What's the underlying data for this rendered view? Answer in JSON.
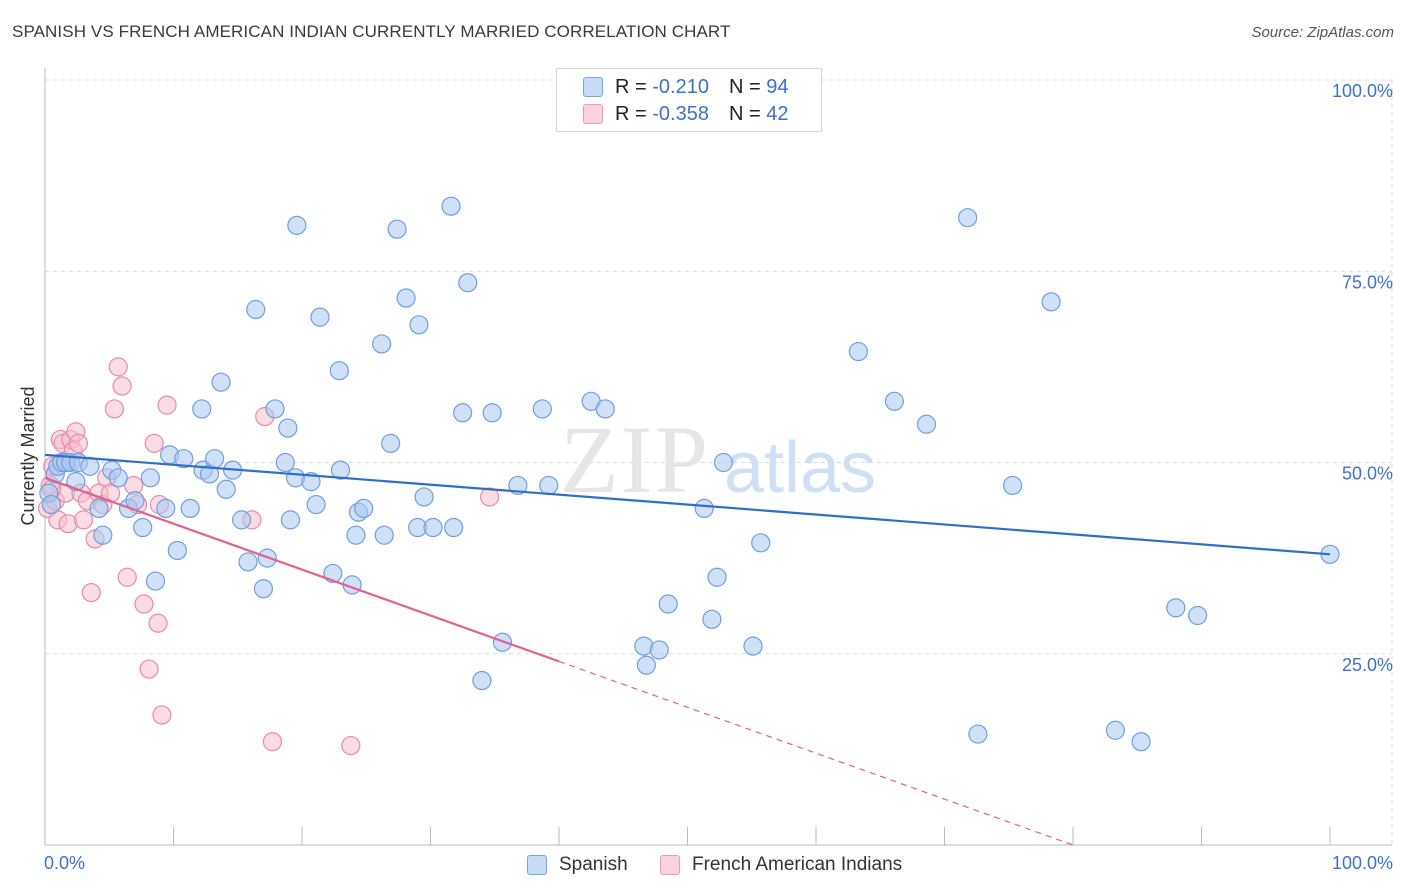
{
  "title": "SPANISH VS FRENCH AMERICAN INDIAN CURRENTLY MARRIED CORRELATION CHART",
  "source": "Source: ZipAtlas.com",
  "watermark": {
    "zip": "ZIP",
    "atlas": "atlas"
  },
  "legend": {
    "r_label": "R =",
    "n_label": "N =",
    "rows": [
      {
        "r": "-0.210",
        "n": "94"
      },
      {
        "r": "-0.358",
        "n": "42"
      }
    ]
  },
  "colors": {
    "spanish_fill": "#a9c8f0",
    "spanish_stroke": "#6f9fdc",
    "spanish_line": "#2e6fcb",
    "french_fill": "#f5bfd0",
    "french_stroke": "#e88aa8",
    "french_line": "#e0628f",
    "axis_text": "#3b73c9",
    "grid": "#d9d9d9"
  },
  "chart_data": {
    "type": "scatter",
    "title": "SPANISH VS FRENCH AMERICAN INDIAN CURRENTLY MARRIED CORRELATION CHART",
    "xlabel": "",
    "ylabel": "Currently Married",
    "xlim": [
      0,
      100
    ],
    "ylim": [
      0,
      100
    ],
    "x_tick_labels": [
      "0.0%",
      "100.0%"
    ],
    "y_tick_labels": [
      "100.0%",
      "75.0%",
      "50.0%",
      "25.0%"
    ],
    "y_ticks": [
      100,
      75,
      50,
      25
    ],
    "grid": true,
    "legend_position": "top-center",
    "series": [
      {
        "name": "Spanish",
        "r": -0.21,
        "n": 94,
        "trend": {
          "x0": 0,
          "y0": 51.0,
          "x1": 100,
          "y1": 38.0
        },
        "points": [
          [
            0.3,
            46.0
          ],
          [
            0.5,
            44.5
          ],
          [
            0.8,
            48.5
          ],
          [
            1.0,
            49.5
          ],
          [
            1.3,
            50.0
          ],
          [
            1.6,
            50.0
          ],
          [
            2.0,
            50.0
          ],
          [
            2.4,
            47.5
          ],
          [
            2.6,
            50.0
          ],
          [
            3.5,
            49.5
          ],
          [
            4.2,
            44.0
          ],
          [
            4.5,
            40.5
          ],
          [
            5.2,
            49.0
          ],
          [
            5.7,
            48.0
          ],
          [
            6.5,
            44.0
          ],
          [
            7.0,
            45.0
          ],
          [
            7.6,
            41.5
          ],
          [
            8.2,
            48.0
          ],
          [
            8.6,
            34.5
          ],
          [
            9.4,
            44.0
          ],
          [
            9.7,
            51.0
          ],
          [
            10.3,
            38.5
          ],
          [
            10.8,
            50.5
          ],
          [
            11.3,
            44.0
          ],
          [
            12.2,
            57.0
          ],
          [
            12.3,
            49.0
          ],
          [
            12.8,
            48.5
          ],
          [
            13.2,
            50.5
          ],
          [
            13.7,
            60.5
          ],
          [
            14.1,
            46.5
          ],
          [
            14.6,
            49.0
          ],
          [
            15.3,
            42.5
          ],
          [
            15.8,
            37.0
          ],
          [
            16.4,
            70.0
          ],
          [
            17.0,
            33.5
          ],
          [
            17.3,
            37.5
          ],
          [
            17.9,
            57.0
          ],
          [
            18.7,
            50.0
          ],
          [
            19.1,
            42.5
          ],
          [
            19.5,
            48.0
          ],
          [
            18.9,
            54.5
          ],
          [
            19.6,
            81.0
          ],
          [
            20.7,
            47.5
          ],
          [
            21.1,
            44.5
          ],
          [
            21.4,
            69.0
          ],
          [
            22.4,
            35.5
          ],
          [
            22.9,
            62.0
          ],
          [
            23.0,
            49.0
          ],
          [
            23.9,
            34.0
          ],
          [
            24.2,
            40.5
          ],
          [
            24.4,
            43.5
          ],
          [
            24.8,
            44.0
          ],
          [
            26.2,
            65.5
          ],
          [
            26.4,
            40.5
          ],
          [
            26.9,
            52.5
          ],
          [
            27.4,
            80.5
          ],
          [
            28.1,
            71.5
          ],
          [
            29.0,
            41.5
          ],
          [
            29.1,
            68.0
          ],
          [
            29.5,
            45.5
          ],
          [
            30.2,
            41.5
          ],
          [
            31.6,
            83.5
          ],
          [
            31.8,
            41.5
          ],
          [
            32.5,
            56.5
          ],
          [
            32.9,
            73.5
          ],
          [
            34.0,
            21.5
          ],
          [
            34.8,
            56.5
          ],
          [
            35.6,
            26.5
          ],
          [
            36.8,
            47.0
          ],
          [
            38.7,
            57.0
          ],
          [
            39.2,
            47.0
          ],
          [
            42.5,
            58.0
          ],
          [
            43.6,
            57.0
          ],
          [
            46.6,
            26.0
          ],
          [
            46.8,
            23.5
          ],
          [
            47.8,
            25.5
          ],
          [
            48.5,
            31.5
          ],
          [
            51.3,
            44.0
          ],
          [
            51.9,
            29.5
          ],
          [
            52.3,
            35.0
          ],
          [
            52.8,
            50.0
          ],
          [
            55.1,
            26.0
          ],
          [
            55.7,
            39.5
          ],
          [
            63.3,
            64.5
          ],
          [
            66.1,
            58.0
          ],
          [
            68.6,
            55.0
          ],
          [
            71.8,
            82.0
          ],
          [
            72.6,
            14.5
          ],
          [
            75.3,
            47.0
          ],
          [
            78.3,
            71.0
          ],
          [
            83.3,
            15.0
          ],
          [
            85.3,
            13.5
          ],
          [
            88.0,
            31.0
          ],
          [
            89.7,
            30.0
          ],
          [
            100.0,
            38.0
          ]
        ]
      },
      {
        "name": "French American Indians",
        "r": -0.358,
        "n": 42,
        "trend": {
          "x0": 0,
          "y0": 48.0,
          "x1": 40,
          "y1": 24.0
        },
        "trend_dashed_to": {
          "x": 80,
          "y": 0.0
        },
        "points": [
          [
            0.2,
            44.0
          ],
          [
            0.4,
            47.0
          ],
          [
            0.6,
            49.5
          ],
          [
            0.8,
            45.0
          ],
          [
            1.0,
            42.5
          ],
          [
            1.2,
            53.0
          ],
          [
            1.4,
            52.5
          ],
          [
            1.6,
            46.0
          ],
          [
            1.8,
            42.0
          ],
          [
            2.0,
            53.0
          ],
          [
            2.2,
            51.5
          ],
          [
            2.4,
            54.0
          ],
          [
            2.6,
            52.5
          ],
          [
            2.8,
            46.0
          ],
          [
            3.0,
            42.5
          ],
          [
            3.3,
            45.0
          ],
          [
            3.6,
            33.0
          ],
          [
            3.9,
            40.0
          ],
          [
            4.2,
            46.0
          ],
          [
            4.5,
            44.5
          ],
          [
            4.8,
            48.0
          ],
          [
            5.1,
            46.0
          ],
          [
            5.4,
            57.0
          ],
          [
            5.7,
            62.5
          ],
          [
            6.0,
            60.0
          ],
          [
            6.4,
            35.0
          ],
          [
            6.9,
            47.0
          ],
          [
            7.2,
            44.5
          ],
          [
            7.7,
            31.5
          ],
          [
            8.1,
            23.0
          ],
          [
            8.5,
            52.5
          ],
          [
            8.8,
            29.0
          ],
          [
            8.9,
            44.5
          ],
          [
            9.1,
            17.0
          ],
          [
            9.5,
            57.5
          ],
          [
            16.1,
            42.5
          ],
          [
            17.1,
            56.0
          ],
          [
            17.7,
            13.5
          ],
          [
            23.8,
            13.0
          ],
          [
            34.6,
            45.5
          ],
          [
            0.5,
            46.5
          ],
          [
            1.7,
            50.0
          ]
        ]
      }
    ]
  }
}
